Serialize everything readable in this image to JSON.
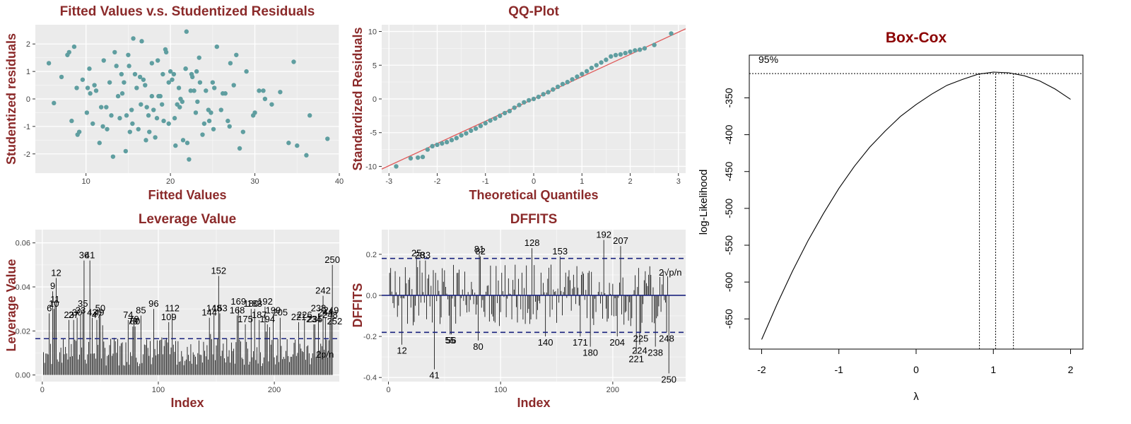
{
  "chart_data": [
    {
      "type": "scatter",
      "title": "Fitted Values v.s. Studentized Residuals",
      "xlabel": "Fitted Values",
      "ylabel": "Studentized residuals",
      "xlim": [
        4,
        40
      ],
      "ylim": [
        -2.7,
        2.7
      ],
      "x_ticks": [
        10,
        20,
        30,
        40
      ],
      "y_ticks": [
        -2,
        -1,
        0,
        1,
        2
      ],
      "point_color": "#5f9ea0",
      "grid": true,
      "x": [
        5.6,
        6.2,
        7.1,
        7.8,
        8.3,
        8.6,
        8.9,
        9.2,
        9.6,
        10.1,
        10.4,
        10.8,
        11.2,
        11.6,
        12.1,
        12.4,
        12.8,
        13.2,
        13.6,
        14.0,
        14.3,
        14.7,
        15.0,
        15.4,
        15.8,
        16.2,
        16.6,
        17.0,
        17.4,
        17.8,
        18.2,
        18.6,
        19.0,
        19.4,
        19.8,
        20.2,
        20.6,
        21.0,
        21.4,
        21.8,
        22.2,
        22.6,
        23.0,
        23.4,
        23.8,
        24.2,
        24.6,
        25.0,
        25.5,
        26.0,
        26.5,
        27.0,
        27.5,
        28.2,
        29.0,
        29.8,
        30.5,
        31.2,
        32.0,
        33.0,
        34.0,
        35.0,
        36.5,
        38.6,
        9.0,
        11.0,
        13.0,
        15.1,
        17.1,
        19.1,
        21.1,
        23.1,
        25.1,
        27.1,
        14.5,
        16.5,
        18.5,
        20.5,
        22.5,
        24.5,
        12.5,
        13.8,
        15.5,
        17.5,
        19.5,
        21.5,
        23.5,
        10.5,
        11.8,
        16.8,
        18.8,
        20.8,
        22.8,
        26.8,
        14.8,
        16.0,
        18.0,
        20.0,
        22.0,
        24.0,
        26.2,
        28.6,
        30.0,
        12.0,
        14.2,
        17.8,
        19.2,
        21.2,
        23.2,
        25.2,
        15.2,
        17.2,
        19.8,
        21.8,
        13.4,
        24.8,
        27.8,
        16.4,
        18.4,
        20.4,
        22.4,
        31.0,
        34.6,
        36.1,
        21.9,
        15.6,
        8.0,
        10.2
      ],
      "y": [
        1.3,
        -0.15,
        0.8,
        1.6,
        -0.8,
        1.9,
        0.4,
        -1.2,
        0.7,
        -0.5,
        1.1,
        -0.9,
        0.3,
        -1.6,
        1.4,
        -0.3,
        0.6,
        -2.1,
        1.2,
        -0.7,
        0.2,
        -1.9,
        1.6,
        -0.4,
        0.9,
        -1.1,
        2.1,
        0.5,
        -0.6,
        1.3,
        -1.4,
        0.1,
        -0.2,
        1.8,
        -0.9,
        0.7,
        -1.7,
        0.4,
        -0.1,
        1.1,
        -2.2,
        0.8,
        -0.5,
        1.5,
        -1.3,
        0.3,
        -0.8,
        0.6,
        1.9,
        -0.4,
        0.2,
        -1.0,
        0.5,
        -1.8,
        1.0,
        -0.6,
        0.3,
        0.0,
        -0.2,
        0.25,
        -1.6,
        -1.7,
        -0.6,
        -1.45,
        -1.3,
        0.5,
        -0.6,
        1.2,
        -1.5,
        0.9,
        -0.3,
        1.0,
        -1.1,
        1.3,
        0.6,
        -0.2,
        1.4,
        -0.7,
        0.9,
        -0.4,
        -1.1,
        0.1,
        -0.9,
        -1.2,
        1.7,
        -1.5,
        0.6,
        0.2,
        -0.3,
        0.7,
        0.1,
        -0.2,
        0.3,
        -0.8,
        -0.6,
        0.4,
        -0.4,
        1.0,
        -1.6,
        -0.9,
        0.2,
        -1.2,
        -0.5,
        -1.0,
        0.9,
        0.1,
        -0.8,
        0.0,
        -0.1,
        0.4,
        -1.2,
        -0.3,
        0.6,
        1.1,
        1.7,
        -0.5,
        1.6,
        0.8,
        -0.7,
        0.9,
        0.3,
        0.3,
        1.35,
        -2.05,
        2.45,
        2.2,
        1.7,
        0.4
      ]
    },
    {
      "type": "scatter",
      "title": "QQ-Plot",
      "xlabel": "Theoretical Quantiles",
      "ylabel": "Standardized Residuals",
      "xlim": [
        -3.15,
        3.15
      ],
      "ylim": [
        -11,
        11
      ],
      "x_ticks": [
        -3,
        -2,
        -1,
        0,
        1,
        2,
        3
      ],
      "y_ticks": [
        -10,
        -5,
        0,
        5,
        10
      ],
      "point_color": "#5f9ea0",
      "line_color": "#e05a5a",
      "reference_line": {
        "slope": 3.3,
        "intercept": 0
      },
      "grid": true,
      "x": [
        -2.85,
        -2.55,
        -2.4,
        -2.3,
        -2.2,
        -2.1,
        -2.0,
        -1.9,
        -1.8,
        -1.7,
        -1.6,
        -1.5,
        -1.4,
        -1.3,
        -1.2,
        -1.1,
        -1.0,
        -0.9,
        -0.8,
        -0.7,
        -0.6,
        -0.5,
        -0.4,
        -0.3,
        -0.2,
        -0.1,
        0.0,
        0.1,
        0.2,
        0.3,
        0.4,
        0.5,
        0.6,
        0.7,
        0.8,
        0.9,
        1.0,
        1.1,
        1.2,
        1.3,
        1.4,
        1.5,
        1.6,
        1.7,
        1.8,
        1.9,
        2.0,
        2.1,
        2.2,
        2.3,
        2.5,
        2.85
      ],
      "y": [
        -10.0,
        -8.8,
        -8.7,
        -8.6,
        -7.5,
        -7.0,
        -6.8,
        -6.6,
        -6.4,
        -6.1,
        -5.8,
        -5.4,
        -5.1,
        -4.7,
        -4.4,
        -4.0,
        -3.6,
        -3.2,
        -2.9,
        -2.5,
        -2.1,
        -1.8,
        -1.3,
        -0.9,
        -0.5,
        -0.2,
        0.0,
        0.3,
        0.7,
        1.0,
        1.4,
        1.8,
        2.2,
        2.5,
        2.9,
        3.3,
        3.7,
        4.1,
        4.6,
        5.0,
        5.4,
        5.8,
        6.3,
        6.5,
        6.6,
        6.8,
        7.0,
        7.2,
        7.3,
        7.5,
        8.0,
        9.7
      ]
    },
    {
      "type": "bar",
      "title": "Leverage Value",
      "xlabel": "Index",
      "ylabel": "Leverage Value",
      "xlim": [
        -6,
        256
      ],
      "ylim": [
        -0.003,
        0.066
      ],
      "x_ticks": [
        0,
        100,
        200
      ],
      "y_ticks": [
        0.0,
        0.02,
        0.04,
        0.06
      ],
      "threshold": 0.0165,
      "threshold_label": "2p/n",
      "threshold_color": "#1a237e",
      "grid": true,
      "count": 250,
      "labeled_points": [
        {
          "index": 6,
          "value": 0.028,
          "label": "6"
        },
        {
          "index": 9,
          "value": 0.038,
          "label": "9"
        },
        {
          "index": 10,
          "value": 0.03,
          "label": "10"
        },
        {
          "index": 11,
          "value": 0.032,
          "label": "11"
        },
        {
          "index": 12,
          "value": 0.044,
          "label": "12"
        },
        {
          "index": 23,
          "value": 0.025,
          "label": "23"
        },
        {
          "index": 27,
          "value": 0.025,
          "label": "27"
        },
        {
          "index": 30,
          "value": 0.026,
          "label": "30"
        },
        {
          "index": 33,
          "value": 0.027,
          "label": "33"
        },
        {
          "index": 35,
          "value": 0.03,
          "label": "35"
        },
        {
          "index": 36,
          "value": 0.052,
          "label": "36"
        },
        {
          "index": 41,
          "value": 0.052,
          "label": "41"
        },
        {
          "index": 43,
          "value": 0.026,
          "label": "43"
        },
        {
          "index": 47,
          "value": 0.025,
          "label": "47"
        },
        {
          "index": 49,
          "value": 0.026,
          "label": "49"
        },
        {
          "index": 50,
          "value": 0.028,
          "label": "50"
        },
        {
          "index": 74,
          "value": 0.025,
          "label": "74"
        },
        {
          "index": 78,
          "value": 0.022,
          "label": "78"
        },
        {
          "index": 79,
          "value": 0.023,
          "label": "79"
        },
        {
          "index": 80,
          "value": 0.022,
          "label": "80"
        },
        {
          "index": 85,
          "value": 0.027,
          "label": "85"
        },
        {
          "index": 96,
          "value": 0.03,
          "label": "96"
        },
        {
          "index": 109,
          "value": 0.024,
          "label": "109"
        },
        {
          "index": 112,
          "value": 0.028,
          "label": "112"
        },
        {
          "index": 144,
          "value": 0.026,
          "label": "144"
        },
        {
          "index": 148,
          "value": 0.028,
          "label": "148"
        },
        {
          "index": 152,
          "value": 0.045,
          "label": "152"
        },
        {
          "index": 153,
          "value": 0.028,
          "label": "153"
        },
        {
          "index": 168,
          "value": 0.027,
          "label": "168"
        },
        {
          "index": 169,
          "value": 0.031,
          "label": "169"
        },
        {
          "index": 175,
          "value": 0.023,
          "label": "175"
        },
        {
          "index": 180,
          "value": 0.03,
          "label": "180"
        },
        {
          "index": 183,
          "value": 0.03,
          "label": "183"
        },
        {
          "index": 187,
          "value": 0.025,
          "label": "187"
        },
        {
          "index": 192,
          "value": 0.031,
          "label": "192"
        },
        {
          "index": 194,
          "value": 0.023,
          "label": "194"
        },
        {
          "index": 199,
          "value": 0.027,
          "label": "199"
        },
        {
          "index": 205,
          "value": 0.026,
          "label": "205"
        },
        {
          "index": 221,
          "value": 0.024,
          "label": "221"
        },
        {
          "index": 226,
          "value": 0.025,
          "label": "226"
        },
        {
          "index": 234,
          "value": 0.023,
          "label": "234"
        },
        {
          "index": 235,
          "value": 0.023,
          "label": "235"
        },
        {
          "index": 238,
          "value": 0.028,
          "label": "238"
        },
        {
          "index": 242,
          "value": 0.036,
          "label": "242"
        },
        {
          "index": 244,
          "value": 0.026,
          "label": "244"
        },
        {
          "index": 248,
          "value": 0.025,
          "label": "248"
        },
        {
          "index": 249,
          "value": 0.027,
          "label": "249"
        },
        {
          "index": 250,
          "value": 0.05,
          "label": "250"
        },
        {
          "index": 252,
          "value": 0.022,
          "label": "252"
        }
      ]
    },
    {
      "type": "bar",
      "title": "DFFITS",
      "xlabel": "Index",
      "ylabel": "DFFITS",
      "xlim": [
        -6,
        265
      ],
      "ylim": [
        -0.42,
        0.32
      ],
      "x_ticks": [
        0,
        100,
        200
      ],
      "y_ticks": [
        -0.4,
        -0.2,
        0.0,
        0.2
      ],
      "threshold": 0.18,
      "threshold_label": "2√p/n",
      "threshold_color": "#1a237e",
      "grid": true,
      "count": 250,
      "labeled_points": [
        {
          "index": 12,
          "value": -0.24,
          "label": "12"
        },
        {
          "index": 25,
          "value": 0.18,
          "label": "25"
        },
        {
          "index": 28,
          "value": 0.17,
          "label": "28"
        },
        {
          "index": 33,
          "value": 0.17,
          "label": "33"
        },
        {
          "index": 41,
          "value": -0.36,
          "label": "41"
        },
        {
          "index": 55,
          "value": -0.19,
          "label": "55"
        },
        {
          "index": 56,
          "value": -0.19,
          "label": "56"
        },
        {
          "index": 80,
          "value": -0.22,
          "label": "80"
        },
        {
          "index": 81,
          "value": 0.2,
          "label": "81"
        },
        {
          "index": 82,
          "value": 0.19,
          "label": "82"
        },
        {
          "index": 128,
          "value": 0.23,
          "label": "128"
        },
        {
          "index": 140,
          "value": -0.2,
          "label": "140"
        },
        {
          "index": 153,
          "value": 0.19,
          "label": "153"
        },
        {
          "index": 171,
          "value": -0.2,
          "label": "171"
        },
        {
          "index": 180,
          "value": -0.25,
          "label": "180"
        },
        {
          "index": 192,
          "value": 0.27,
          "label": "192"
        },
        {
          "index": 204,
          "value": -0.2,
          "label": "204"
        },
        {
          "index": 207,
          "value": 0.24,
          "label": "207"
        },
        {
          "index": 221,
          "value": -0.28,
          "label": "221"
        },
        {
          "index": 224,
          "value": -0.24,
          "label": "224"
        },
        {
          "index": 225,
          "value": -0.18,
          "label": "225"
        },
        {
          "index": 238,
          "value": -0.25,
          "label": "238"
        },
        {
          "index": 248,
          "value": -0.18,
          "label": "248"
        },
        {
          "index": 250,
          "value": -0.38,
          "label": "250"
        }
      ]
    },
    {
      "type": "line",
      "title": "Box-Cox",
      "xlabel": "λ",
      "ylabel": "log-Likelihood",
      "xlim": [
        -2.16,
        2.16
      ],
      "ylim": [
        -691,
        -292
      ],
      "x_ticks": [
        -2,
        -1,
        0,
        1,
        2
      ],
      "y_ticks": [
        -650,
        -600,
        -550,
        -500,
        -450,
        -400,
        -350
      ],
      "title_color": "#8b0000",
      "grid": false,
      "ci_label": "95%",
      "ci_level_y": -317,
      "ci_lower": 0.82,
      "ci_upper": 1.26,
      "peak": 1.03,
      "x": [
        -2.0,
        -1.8,
        -1.6,
        -1.4,
        -1.2,
        -1.0,
        -0.8,
        -0.6,
        -0.4,
        -0.2,
        0.0,
        0.2,
        0.4,
        0.6,
        0.8,
        1.0,
        1.2,
        1.4,
        1.6,
        1.8,
        2.0
      ],
      "y": [
        -678,
        -630,
        -585,
        -544,
        -507,
        -473,
        -443,
        -417,
        -395,
        -375,
        -359,
        -345,
        -333,
        -325,
        -318,
        -315,
        -316,
        -320,
        -327,
        -338,
        -352
      ]
    }
  ]
}
